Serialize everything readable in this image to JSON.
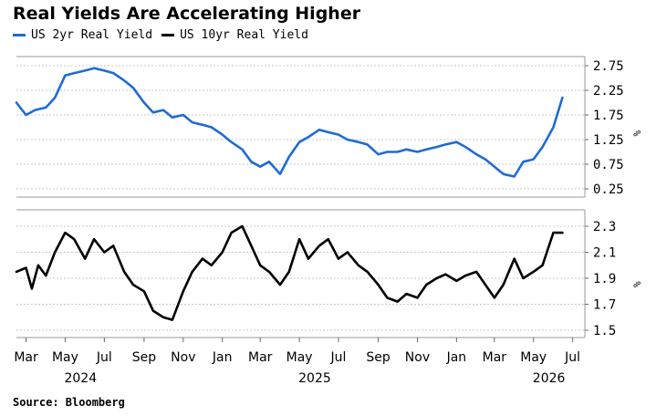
{
  "title": "Real Yields Are Accelerating Higher",
  "source": "Source: Bloomberg",
  "chart_data": [
    {
      "type": "line",
      "series": [
        {
          "name": "US 2yr Real Yield",
          "color": "#1f6bd6",
          "x": [
            "2024-02-15",
            "2024-03-01",
            "2024-03-15",
            "2024-04-01",
            "2024-04-15",
            "2024-05-01",
            "2024-05-15",
            "2024-06-01",
            "2024-06-15",
            "2024-07-01",
            "2024-07-15",
            "2024-08-01",
            "2024-08-15",
            "2024-09-01",
            "2024-09-15",
            "2024-10-01",
            "2024-10-15",
            "2024-11-01",
            "2024-11-15",
            "2024-12-01",
            "2024-12-15",
            "2025-01-01",
            "2025-01-15",
            "2025-02-01",
            "2025-02-15",
            "2025-03-01",
            "2025-03-15",
            "2025-04-01",
            "2025-04-15",
            "2025-05-01",
            "2025-05-15",
            "2025-06-01",
            "2025-06-15",
            "2025-07-01",
            "2025-07-15",
            "2025-08-01",
            "2025-08-15",
            "2025-09-01",
            "2025-09-15",
            "2025-10-01",
            "2025-10-15",
            "2025-11-01",
            "2025-11-15",
            "2025-12-01",
            "2025-12-15",
            "2026-01-01",
            "2026-01-15",
            "2026-02-01",
            "2026-02-15",
            "2026-03-01",
            "2026-03-15",
            "2026-04-01",
            "2026-04-15",
            "2026-05-01",
            "2026-05-15",
            "2026-06-01",
            "2026-06-15"
          ],
          "values": [
            2.0,
            1.75,
            1.85,
            1.9,
            2.1,
            2.55,
            2.6,
            2.65,
            2.7,
            2.65,
            2.6,
            2.45,
            2.3,
            2.0,
            1.8,
            1.85,
            1.7,
            1.75,
            1.6,
            1.55,
            1.5,
            1.35,
            1.2,
            1.05,
            0.8,
            0.7,
            0.8,
            0.55,
            0.9,
            1.2,
            1.3,
            1.45,
            1.4,
            1.35,
            1.25,
            1.2,
            1.15,
            0.95,
            1.0,
            1.0,
            1.05,
            1.0,
            1.05,
            1.1,
            1.15,
            1.2,
            1.1,
            0.95,
            0.85,
            0.7,
            0.55,
            0.5,
            0.8,
            0.85,
            1.1,
            1.5,
            2.1
          ]
        }
      ],
      "yticks": [
        "2.75",
        "2.25",
        "1.75",
        "1.25",
        "0.75",
        "0.25"
      ],
      "ylim": [
        0.25,
        2.75
      ],
      "unit": "%"
    },
    {
      "type": "line",
      "series": [
        {
          "name": "US 10yr Real Yield",
          "color": "#000000",
          "x": [
            "2024-02-15",
            "2024-03-01",
            "2024-03-10",
            "2024-03-20",
            "2024-04-01",
            "2024-04-15",
            "2024-05-01",
            "2024-05-15",
            "2024-06-01",
            "2024-06-15",
            "2024-07-01",
            "2024-07-15",
            "2024-08-01",
            "2024-08-15",
            "2024-09-01",
            "2024-09-15",
            "2024-10-01",
            "2024-10-15",
            "2024-11-01",
            "2024-11-15",
            "2024-12-01",
            "2024-12-15",
            "2025-01-01",
            "2025-01-15",
            "2025-02-01",
            "2025-02-15",
            "2025-03-01",
            "2025-03-15",
            "2025-04-01",
            "2025-04-15",
            "2025-05-01",
            "2025-05-15",
            "2025-06-01",
            "2025-06-15",
            "2025-07-01",
            "2025-07-15",
            "2025-08-01",
            "2025-08-15",
            "2025-09-01",
            "2025-09-15",
            "2025-10-01",
            "2025-10-15",
            "2025-11-01",
            "2025-11-15",
            "2025-12-01",
            "2025-12-15",
            "2026-01-01",
            "2026-01-15",
            "2026-02-01",
            "2026-02-15",
            "2026-03-01",
            "2026-03-15",
            "2026-04-01",
            "2026-04-15",
            "2026-05-01",
            "2026-05-15",
            "2026-06-01",
            "2026-06-15"
          ],
          "values": [
            1.95,
            1.98,
            1.82,
            2.0,
            1.92,
            2.1,
            2.25,
            2.2,
            2.05,
            2.2,
            2.1,
            2.15,
            1.95,
            1.85,
            1.8,
            1.65,
            1.6,
            1.58,
            1.8,
            1.95,
            2.05,
            2.0,
            2.1,
            2.25,
            2.3,
            2.15,
            2.0,
            1.95,
            1.85,
            1.95,
            2.2,
            2.05,
            2.15,
            2.2,
            2.05,
            2.1,
            2.0,
            1.95,
            1.85,
            1.75,
            1.72,
            1.78,
            1.75,
            1.85,
            1.9,
            1.93,
            1.88,
            1.92,
            1.95,
            1.85,
            1.75,
            1.85,
            2.05,
            1.9,
            1.95,
            2.0,
            2.25,
            2.25
          ]
        }
      ],
      "yticks": [
        "2.3",
        "2.1",
        "1.9",
        "1.7",
        "1.5"
      ],
      "ylim": [
        1.5,
        2.3
      ],
      "unit": "%",
      "xlabels": [
        "Mar",
        "May",
        "Jul",
        "Sep",
        "Nov",
        "Jan",
        "Mar",
        "May",
        "Jul",
        "Sep",
        "Nov",
        "Jan",
        "Mar",
        "May",
        "Jul"
      ],
      "xlabel_dates": [
        "2024-03-01",
        "2024-05-01",
        "2024-07-01",
        "2024-09-01",
        "2024-11-01",
        "2025-01-01",
        "2025-03-01",
        "2025-05-01",
        "2025-07-01",
        "2025-09-01",
        "2025-11-01",
        "2026-01-01",
        "2026-03-01",
        "2026-05-01",
        "2026-07-01"
      ],
      "years": [
        "2024",
        "2025",
        "2026"
      ],
      "year_dates": [
        "2024-05-25",
        "2025-05-25",
        "2026-05-25"
      ]
    }
  ]
}
